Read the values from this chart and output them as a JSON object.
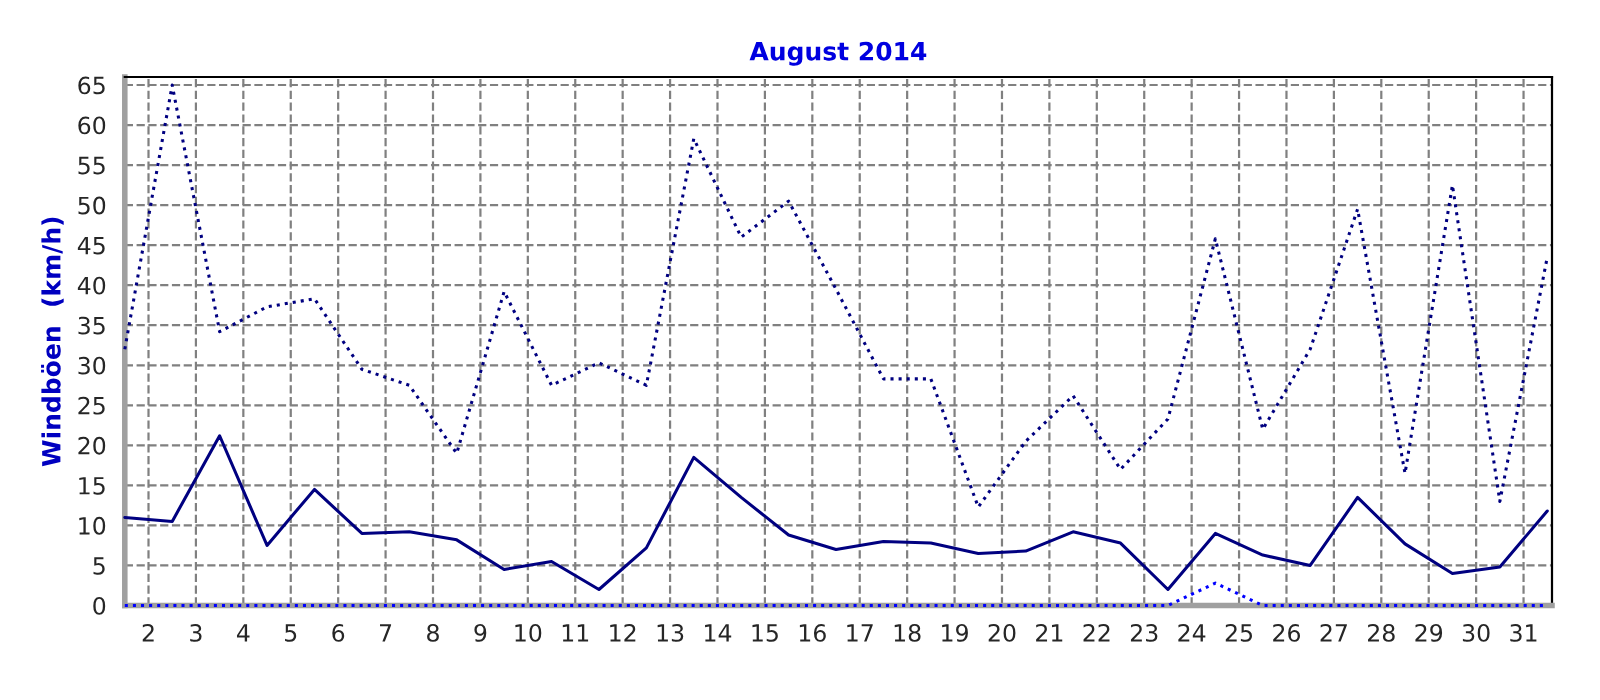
{
  "chart_data": {
    "type": "line",
    "title": "August 2014",
    "ylabel": "Windböen  (km/h)",
    "x": [
      1.5,
      2.5,
      3.5,
      4.5,
      5.5,
      6.5,
      7.5,
      8.5,
      9.5,
      10.5,
      11.5,
      12.5,
      13.5,
      14.5,
      15.5,
      16.5,
      17.5,
      18.5,
      19.5,
      20.5,
      21.5,
      22.5,
      23.5,
      24.5,
      25.5,
      26.5,
      27.5,
      28.5,
      29.5,
      30.5,
      31.5
    ],
    "series": [
      {
        "color": "#000080",
        "line_style": "solid",
        "values": [
          11,
          10.5,
          21.2,
          7.5,
          14.5,
          9,
          9.2,
          8.2,
          4.5,
          5.5,
          2,
          7.2,
          18.5,
          13.5,
          8.8,
          7,
          8,
          7.8,
          6.5,
          6.8,
          9.2,
          7.8,
          2,
          9,
          6.3,
          5,
          13.5,
          7.7,
          4,
          4.8,
          11.8
        ]
      },
      {
        "color": "#000080",
        "line_style": "dotted",
        "values": [
          32,
          65,
          34.2,
          37.3,
          38.3,
          29.5,
          27.5,
          19,
          39.2,
          27.5,
          30.3,
          27.5,
          58.3,
          46,
          50.5,
          39.5,
          28.3,
          28.3,
          12.3,
          20.5,
          26.2,
          17,
          23.3,
          45.8,
          22,
          32,
          49.5,
          16.5,
          52.5,
          13,
          43.5
        ]
      },
      {
        "color": "#0000ff",
        "line_style": "dotted",
        "values": [
          0,
          0,
          0,
          0,
          0,
          0,
          0,
          0,
          0,
          0,
          0,
          0,
          0,
          0,
          0,
          0,
          0,
          0,
          0,
          0,
          0,
          0,
          0,
          2.8,
          0,
          0,
          0,
          0,
          0,
          0,
          0
        ]
      }
    ],
    "xlim": [
      1.5,
      31.6
    ],
    "xticks": [
      2,
      3,
      4,
      5,
      6,
      7,
      8,
      9,
      10,
      11,
      12,
      13,
      14,
      15,
      16,
      17,
      18,
      19,
      20,
      21,
      22,
      23,
      24,
      25,
      26,
      27,
      28,
      29,
      30,
      31
    ],
    "ylim": [
      0,
      66
    ],
    "yticks": [
      0,
      5,
      10,
      15,
      20,
      25,
      30,
      35,
      40,
      45,
      50,
      55,
      60,
      65
    ],
    "grid": true,
    "legend": false,
    "marker": "none"
  }
}
